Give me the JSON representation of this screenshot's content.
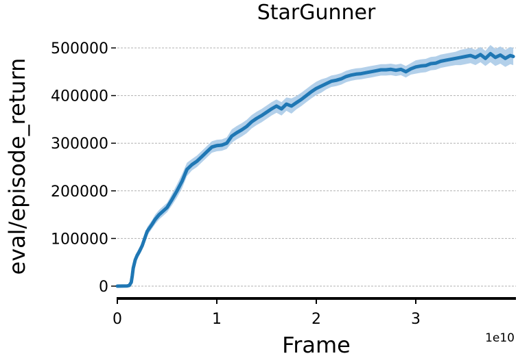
{
  "chart_data": {
    "type": "line",
    "title": "StarGunner",
    "xlabel": "Frame",
    "ylabel": "eval/episode_return",
    "x_offset_label": "1e10",
    "xlim": [
      0,
      3.98
    ],
    "ylim": [
      -25000,
      525000
    ],
    "x_ticks": [
      0,
      1,
      2,
      3
    ],
    "x_tick_labels": [
      "0",
      "1",
      "2",
      "3"
    ],
    "y_ticks": [
      0,
      100000,
      200000,
      300000,
      400000,
      500000
    ],
    "y_tick_labels": [
      "0",
      "100000",
      "200000",
      "300000",
      "400000",
      "500000"
    ],
    "grid": "y-dashed",
    "colors": {
      "line": "#1f77b4",
      "band": "#a6c8e6"
    },
    "series": [
      {
        "x": [
          0,
          0.1,
          0.12,
          0.14,
          0.15,
          0.16,
          0.18,
          0.2,
          0.22,
          0.25,
          0.3,
          0.35,
          0.38,
          0.42,
          0.5,
          0.55,
          0.6,
          0.65,
          0.7,
          0.75,
          0.8,
          0.85,
          0.9,
          0.95,
          1.0,
          1.05,
          1.1,
          1.15,
          1.2,
          1.25,
          1.3,
          1.35,
          1.4,
          1.45,
          1.5,
          1.55,
          1.6,
          1.65,
          1.7,
          1.75,
          1.8,
          1.85,
          1.9,
          1.95,
          2.0,
          2.05,
          2.1,
          2.15,
          2.2,
          2.25,
          2.3,
          2.35,
          2.4,
          2.45,
          2.5,
          2.55,
          2.6,
          2.65,
          2.7,
          2.75,
          2.8,
          2.85,
          2.9,
          2.95,
          3.0,
          3.05,
          3.1,
          3.15,
          3.2,
          3.25,
          3.3,
          3.35,
          3.4,
          3.45,
          3.5,
          3.55,
          3.6,
          3.65,
          3.7,
          3.75,
          3.8,
          3.85,
          3.9,
          3.95,
          3.98
        ],
        "values": [
          0,
          500,
          1500,
          8000,
          22000,
          38000,
          55000,
          65000,
          72000,
          85000,
          115000,
          130000,
          140000,
          150000,
          165000,
          182000,
          200000,
          220000,
          245000,
          255000,
          262000,
          272000,
          282000,
          292000,
          295000,
          296000,
          300000,
          315000,
          322000,
          328000,
          335000,
          345000,
          352000,
          358000,
          365000,
          372000,
          378000,
          372000,
          382000,
          378000,
          385000,
          392000,
          400000,
          408000,
          415000,
          420000,
          425000,
          430000,
          432000,
          435000,
          440000,
          443000,
          445000,
          446000,
          448000,
          450000,
          452000,
          454000,
          454000,
          455000,
          453000,
          455000,
          450000,
          456000,
          460000,
          462000,
          463000,
          467000,
          468000,
          472000,
          474000,
          476000,
          478000,
          480000,
          482000,
          484000,
          480000,
          486000,
          478000,
          488000,
          480000,
          485000,
          478000,
          484000,
          482000
        ],
        "band": [
          0,
          300,
          800,
          3000,
          6000,
          8000,
          8000,
          8000,
          8000,
          8000,
          9000,
          9000,
          10000,
          10000,
          10000,
          12000,
          14000,
          15000,
          14000,
          12000,
          12000,
          12000,
          12000,
          12000,
          12000,
          12000,
          12000,
          14000,
          14000,
          14000,
          14000,
          14000,
          14000,
          14000,
          14000,
          14000,
          14000,
          14000,
          14000,
          16000,
          14000,
          14000,
          14000,
          14000,
          14000,
          14000,
          12000,
          12000,
          12000,
          12000,
          12000,
          12000,
          12000,
          12000,
          12000,
          12000,
          12000,
          12000,
          12000,
          12000,
          12000,
          12000,
          12000,
          12000,
          14000,
          14000,
          14000,
          14000,
          14000,
          14000,
          14000,
          14000,
          14000,
          16000,
          16000,
          16000,
          16000,
          16000,
          16000,
          18000,
          18000,
          18000,
          18000,
          18000,
          18000
        ]
      }
    ]
  }
}
